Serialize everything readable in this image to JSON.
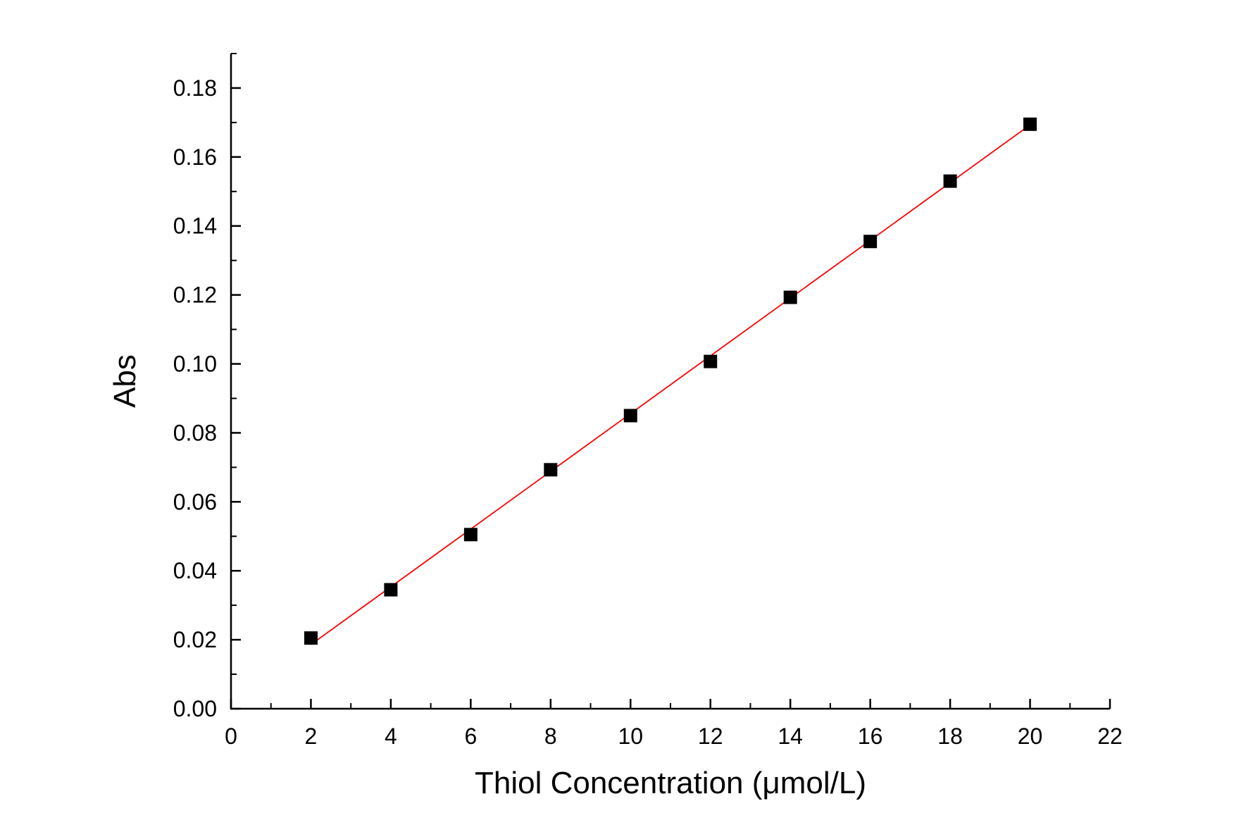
{
  "chart_data": {
    "type": "scatter",
    "title": "",
    "xlabel": "Thiol Concentration (μmol/L)",
    "ylabel": "Abs",
    "xlim": [
      0,
      22
    ],
    "ylim": [
      0,
      0.19
    ],
    "x_ticks": [
      0,
      2,
      4,
      6,
      8,
      10,
      12,
      14,
      16,
      18,
      20,
      22
    ],
    "x_tick_labels": [
      "0",
      "2",
      "4",
      "6",
      "8",
      "10",
      "12",
      "14",
      "16",
      "18",
      "20",
      "22"
    ],
    "y_ticks": [
      0,
      0.02,
      0.04,
      0.06,
      0.08,
      0.1,
      0.12,
      0.14,
      0.16,
      0.18
    ],
    "y_tick_labels": [
      "0.00",
      "0.02",
      "0.04",
      "0.06",
      "0.08",
      "0.10",
      "0.12",
      "0.14",
      "0.16",
      "0.18"
    ],
    "grid": false,
    "legend": "none",
    "series": [
      {
        "x": [
          2,
          4,
          6,
          8,
          10,
          12,
          14,
          16,
          18,
          20
        ],
        "y": [
          0.0205,
          0.0345,
          0.0505,
          0.0693,
          0.085,
          0.1007,
          0.1193,
          0.1355,
          0.153,
          0.1695
        ],
        "marker": "square",
        "color": "#000000"
      }
    ],
    "fit_line": {
      "x": [
        2,
        20
      ],
      "y": [
        0.0186,
        0.1693
      ],
      "color": "#ff0000"
    }
  }
}
